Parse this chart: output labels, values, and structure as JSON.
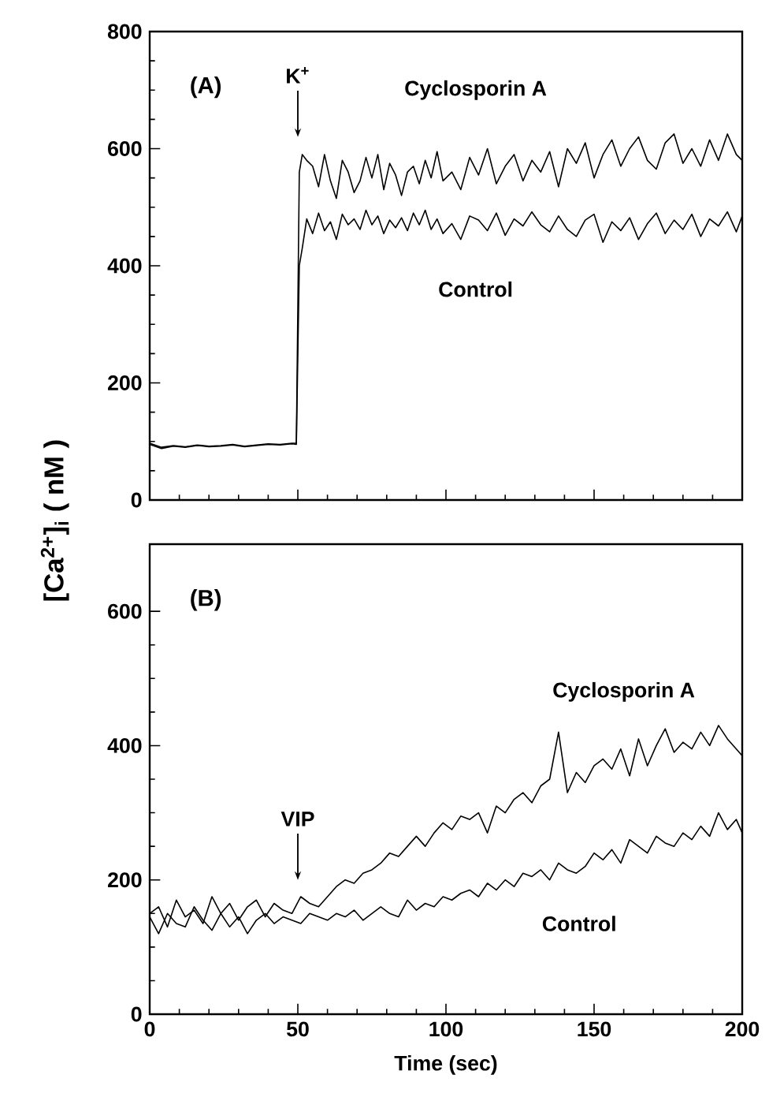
{
  "chart_data": [
    {
      "type": "line",
      "ylabel": "[Ca$^{2+}$]$_{i}$ ( nM )",
      "annotations": [
        "(A)",
        "K$^{+}$"
      ],
      "xlim": [
        0,
        200
      ],
      "xticks": [
        0,
        50,
        100,
        150,
        200
      ],
      "ylim": [
        0,
        800
      ],
      "yticks": [
        0,
        200,
        400,
        600,
        800
      ],
      "tick_labels": "y",
      "marker": "none",
      "x": [
        0,
        4,
        8,
        12,
        16,
        20,
        24,
        28,
        32,
        36,
        40,
        44,
        48,
        49.5,
        50.5,
        51.5,
        53,
        55,
        57,
        59,
        61,
        63,
        65,
        67,
        69,
        71,
        73,
        75,
        77,
        79,
        81,
        83,
        85,
        87,
        89,
        91,
        93,
        95,
        97,
        99,
        102,
        105,
        108,
        111,
        114,
        117,
        120,
        123,
        126,
        129,
        132,
        135,
        138,
        141,
        144,
        147,
        150,
        153,
        156,
        159,
        162,
        165,
        168,
        171,
        174,
        177,
        180,
        183,
        186,
        189,
        192,
        195,
        198,
        200
      ],
      "series": [
        {
          "name": "Control",
          "color": "#000000",
          "values": [
            95,
            88,
            92,
            90,
            93,
            91,
            92,
            94,
            91,
            93,
            95,
            94,
            96,
            95,
            400,
            430,
            480,
            455,
            490,
            460,
            475,
            445,
            488,
            470,
            480,
            462,
            495,
            470,
            485,
            455,
            478,
            465,
            482,
            460,
            490,
            470,
            495,
            462,
            480,
            455,
            472,
            445,
            485,
            478,
            460,
            490,
            452,
            480,
            468,
            492,
            470,
            458,
            485,
            462,
            450,
            478,
            488,
            440,
            475,
            460,
            482,
            445,
            472,
            490,
            455,
            478,
            462,
            488,
            450,
            480,
            468,
            492,
            458,
            485
          ]
        },
        {
          "name": "Cyclosporin A",
          "color": "#000000",
          "values": [
            97,
            90,
            93,
            91,
            94,
            92,
            93,
            95,
            92,
            94,
            96,
            95,
            97,
            97,
            560,
            590,
            580,
            570,
            535,
            590,
            545,
            515,
            580,
            560,
            525,
            545,
            585,
            550,
            590,
            530,
            575,
            555,
            520,
            560,
            570,
            540,
            580,
            550,
            595,
            545,
            560,
            530,
            585,
            555,
            600,
            540,
            570,
            590,
            545,
            580,
            560,
            595,
            535,
            600,
            575,
            610,
            550,
            590,
            615,
            570,
            600,
            620,
            580,
            565,
            610,
            625,
            575,
            600,
            570,
            615,
            580,
            625,
            590,
            580
          ]
        }
      ]
    },
    {
      "type": "line",
      "xlabel": "Time (sec)",
      "annotations": [
        "(B)",
        "VIP"
      ],
      "xlim": [
        0,
        200
      ],
      "xticks": [
        0,
        50,
        100,
        150,
        200
      ],
      "ylim": [
        0,
        700
      ],
      "yticks": [
        0,
        200,
        400,
        600
      ],
      "marker": "none",
      "x": [
        0,
        3,
        6,
        9,
        12,
        15,
        18,
        21,
        24,
        27,
        30,
        33,
        36,
        39,
        42,
        45,
        48,
        51,
        54,
        57,
        60,
        63,
        66,
        69,
        72,
        75,
        78,
        81,
        84,
        87,
        90,
        93,
        96,
        99,
        102,
        105,
        108,
        111,
        114,
        117,
        120,
        123,
        126,
        129,
        132,
        135,
        138,
        141,
        144,
        147,
        150,
        153,
        156,
        159,
        162,
        165,
        168,
        171,
        174,
        177,
        180,
        183,
        186,
        189,
        192,
        195,
        198,
        200
      ],
      "series": [
        {
          "name": "Control",
          "color": "#000000",
          "values": [
            145,
            120,
            150,
            135,
            130,
            160,
            140,
            125,
            150,
            130,
            145,
            120,
            140,
            150,
            135,
            145,
            140,
            135,
            150,
            145,
            140,
            150,
            145,
            155,
            140,
            150,
            160,
            150,
            145,
            170,
            155,
            165,
            160,
            175,
            170,
            180,
            185,
            175,
            195,
            185,
            200,
            190,
            210,
            205,
            215,
            200,
            225,
            215,
            210,
            220,
            240,
            230,
            245,
            225,
            260,
            250,
            240,
            265,
            255,
            250,
            270,
            260,
            280,
            265,
            300,
            275,
            290,
            270
          ]
        },
        {
          "name": "Cyclosporin A",
          "color": "#000000",
          "values": [
            150,
            160,
            130,
            170,
            145,
            155,
            135,
            175,
            150,
            165,
            140,
            160,
            170,
            145,
            165,
            155,
            150,
            175,
            165,
            160,
            175,
            190,
            200,
            195,
            210,
            215,
            225,
            240,
            235,
            250,
            265,
            250,
            270,
            285,
            275,
            295,
            290,
            300,
            270,
            310,
            300,
            320,
            330,
            315,
            340,
            350,
            420,
            330,
            360,
            345,
            370,
            380,
            365,
            395,
            355,
            410,
            370,
            400,
            425,
            390,
            405,
            395,
            420,
            400,
            430,
            410,
            395,
            385
          ]
        }
      ]
    }
  ]
}
